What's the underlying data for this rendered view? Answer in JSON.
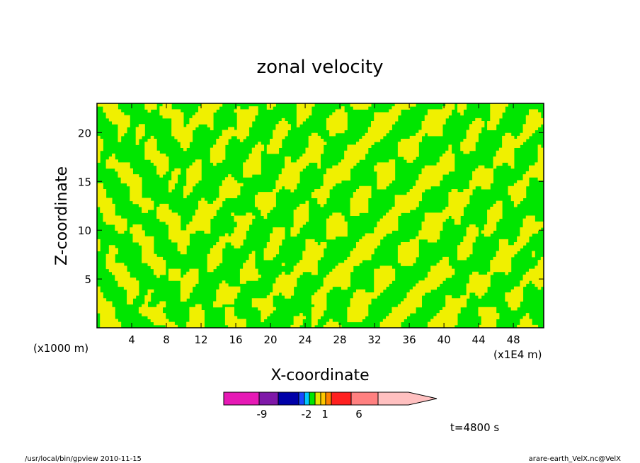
{
  "chart_data": {
    "type": "heatmap",
    "title": "zonal velocity",
    "xlabel": "X-coordinate",
    "ylabel": "Z-coordinate",
    "x_unit_left": "(x1000 m)",
    "x_unit_right": "(x1E4 m)",
    "x_ticks": [
      4,
      8,
      12,
      16,
      20,
      24,
      28,
      32,
      36,
      40,
      44,
      48
    ],
    "y_ticks": [
      5,
      10,
      15,
      20
    ],
    "xlim": [
      0,
      51.5
    ],
    "ylim": [
      0,
      23
    ],
    "colorbar": {
      "colors": [
        "#e619b5",
        "#7f18a8",
        "#0000a8",
        "#1848ff",
        "#00c8ff",
        "#00e600",
        "#e6e600",
        "#ffc800",
        "#ff8000",
        "#ff2020",
        "#ff8080",
        "#ffc0c0"
      ],
      "tick_labels": [
        "-9",
        "-2",
        "1",
        "6"
      ]
    },
    "field_colors": [
      "#00e600",
      "#f0f000"
    ],
    "time_label": "t=4800 s"
  },
  "footer": {
    "left": "/usr/local/bin/gpview   2010-11-15",
    "right": "arare-earth_VelX.nc@VelX"
  }
}
